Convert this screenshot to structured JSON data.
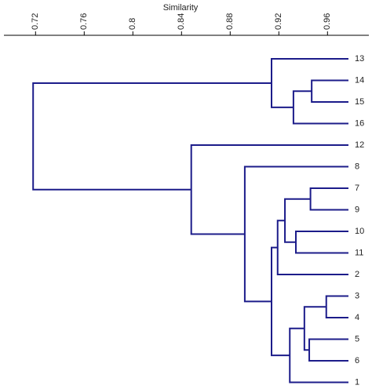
{
  "chart_data": {
    "type": "dendrogram",
    "x_label": "Similarity",
    "color": "#1c1c8a",
    "xlim": [
      0.694,
      0.994
    ],
    "xticks": [
      0.72,
      0.76,
      0.8,
      0.84,
      0.88,
      0.92,
      0.96
    ],
    "tree": {
      "similarity": 0.718,
      "children": [
        {
          "similarity": 0.914,
          "children": [
            {
              "label": "13"
            },
            {
              "similarity": 0.932,
              "children": [
                {
                  "similarity": 0.947,
                  "children": [
                    {
                      "label": "14"
                    },
                    {
                      "label": "15"
                    }
                  ]
                },
                {
                  "label": "16"
                }
              ]
            }
          ]
        },
        {
          "similarity": 0.848,
          "children": [
            {
              "label": "12"
            },
            {
              "similarity": 0.892,
              "children": [
                {
                  "label": "8"
                },
                {
                  "similarity": 0.914,
                  "children": [
                    {
                      "similarity": 0.919,
                      "children": [
                        {
                          "similarity": 0.925,
                          "children": [
                            {
                              "similarity": 0.946,
                              "children": [
                                {
                                  "label": "7"
                                },
                                {
                                  "label": "9"
                                }
                              ]
                            },
                            {
                              "similarity": 0.934,
                              "children": [
                                {
                                  "label": "10"
                                },
                                {
                                  "label": "11"
                                }
                              ]
                            }
                          ]
                        },
                        {
                          "label": "2"
                        }
                      ]
                    },
                    {
                      "similarity": 0.929,
                      "children": [
                        {
                          "similarity": 0.941,
                          "children": [
                            {
                              "similarity": 0.959,
                              "children": [
                                {
                                  "label": "3"
                                },
                                {
                                  "label": "4"
                                }
                              ]
                            },
                            {
                              "similarity": 0.945,
                              "children": [
                                {
                                  "label": "5"
                                },
                                {
                                  "label": "6"
                                }
                              ]
                            }
                          ]
                        },
                        {
                          "label": "1"
                        }
                      ]
                    }
                  ]
                }
              ]
            }
          ]
        }
      ]
    }
  }
}
